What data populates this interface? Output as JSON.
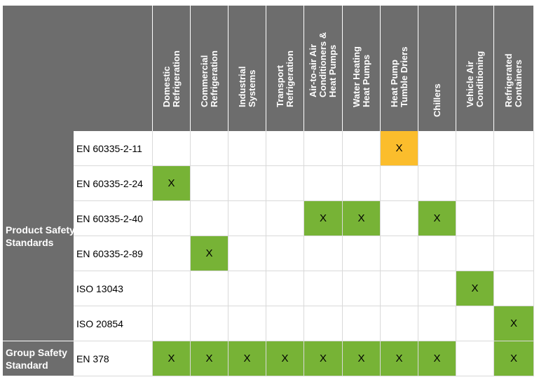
{
  "columns": [
    "Domestic\nRefrigeration",
    "Commercial\nRefrigeration",
    "Industrial\nSystems",
    "Transport\nRefrigeration",
    "Air-to-air Air\nConditioners &\nHeat Pumps",
    "Water Heating\nHeat Pumps",
    "Heat Pump\nTumble Driers",
    "Chillers",
    "Vehicle Air\nConditioning",
    "Refrigerated\nContainers"
  ],
  "groups": [
    {
      "label": "Product Safety\nStandards",
      "rows": [
        0,
        1,
        2,
        3,
        4,
        5
      ]
    },
    {
      "label": "Group Safety\nStandard",
      "rows": [
        6
      ]
    }
  ],
  "rows": [
    {
      "standard": "EN 60335-2-11",
      "marks": [
        "",
        "",
        "",
        "",
        "",
        "",
        "X",
        "",
        "",
        ""
      ],
      "fills": [
        "",
        "",
        "",
        "",
        "",
        "",
        "amber",
        "",
        "",
        ""
      ]
    },
    {
      "standard": "EN 60335-2-24",
      "marks": [
        "X",
        "",
        "",
        "",
        "",
        "",
        "",
        "",
        "",
        ""
      ],
      "fills": [
        "green",
        "",
        "",
        "",
        "",
        "",
        "",
        "",
        "",
        ""
      ]
    },
    {
      "standard": "EN 60335-2-40",
      "marks": [
        "",
        "",
        "",
        "",
        "X",
        "X",
        "",
        "X",
        "",
        ""
      ],
      "fills": [
        "",
        "",
        "",
        "",
        "green",
        "green",
        "",
        "green",
        "",
        ""
      ]
    },
    {
      "standard": "EN 60335-2-89",
      "marks": [
        "",
        "X",
        "",
        "",
        "",
        "",
        "",
        "",
        "",
        ""
      ],
      "fills": [
        "",
        "green",
        "",
        "",
        "",
        "",
        "",
        "",
        "",
        ""
      ]
    },
    {
      "standard": "ISO 13043",
      "marks": [
        "",
        "",
        "",
        "",
        "",
        "",
        "",
        "",
        "X",
        ""
      ],
      "fills": [
        "",
        "",
        "",
        "",
        "",
        "",
        "",
        "",
        "green",
        ""
      ]
    },
    {
      "standard": "ISO 20854",
      "marks": [
        "",
        "",
        "",
        "",
        "",
        "",
        "",
        "",
        "",
        "X"
      ],
      "fills": [
        "",
        "",
        "",
        "",
        "",
        "",
        "",
        "",
        "",
        "green"
      ]
    },
    {
      "standard": "EN 378",
      "marks": [
        "X",
        "X",
        "X",
        "X",
        "X",
        "X",
        "X",
        "X",
        "",
        "X"
      ],
      "fills": [
        "green",
        "green",
        "green",
        "green",
        "green",
        "green",
        "green",
        "green",
        "",
        "green"
      ]
    }
  ],
  "colors": {
    "header_bg": "#6d6d6d",
    "green": "#77b336",
    "amber": "#fbbd2c",
    "grid_line": "#d9d9d9"
  }
}
